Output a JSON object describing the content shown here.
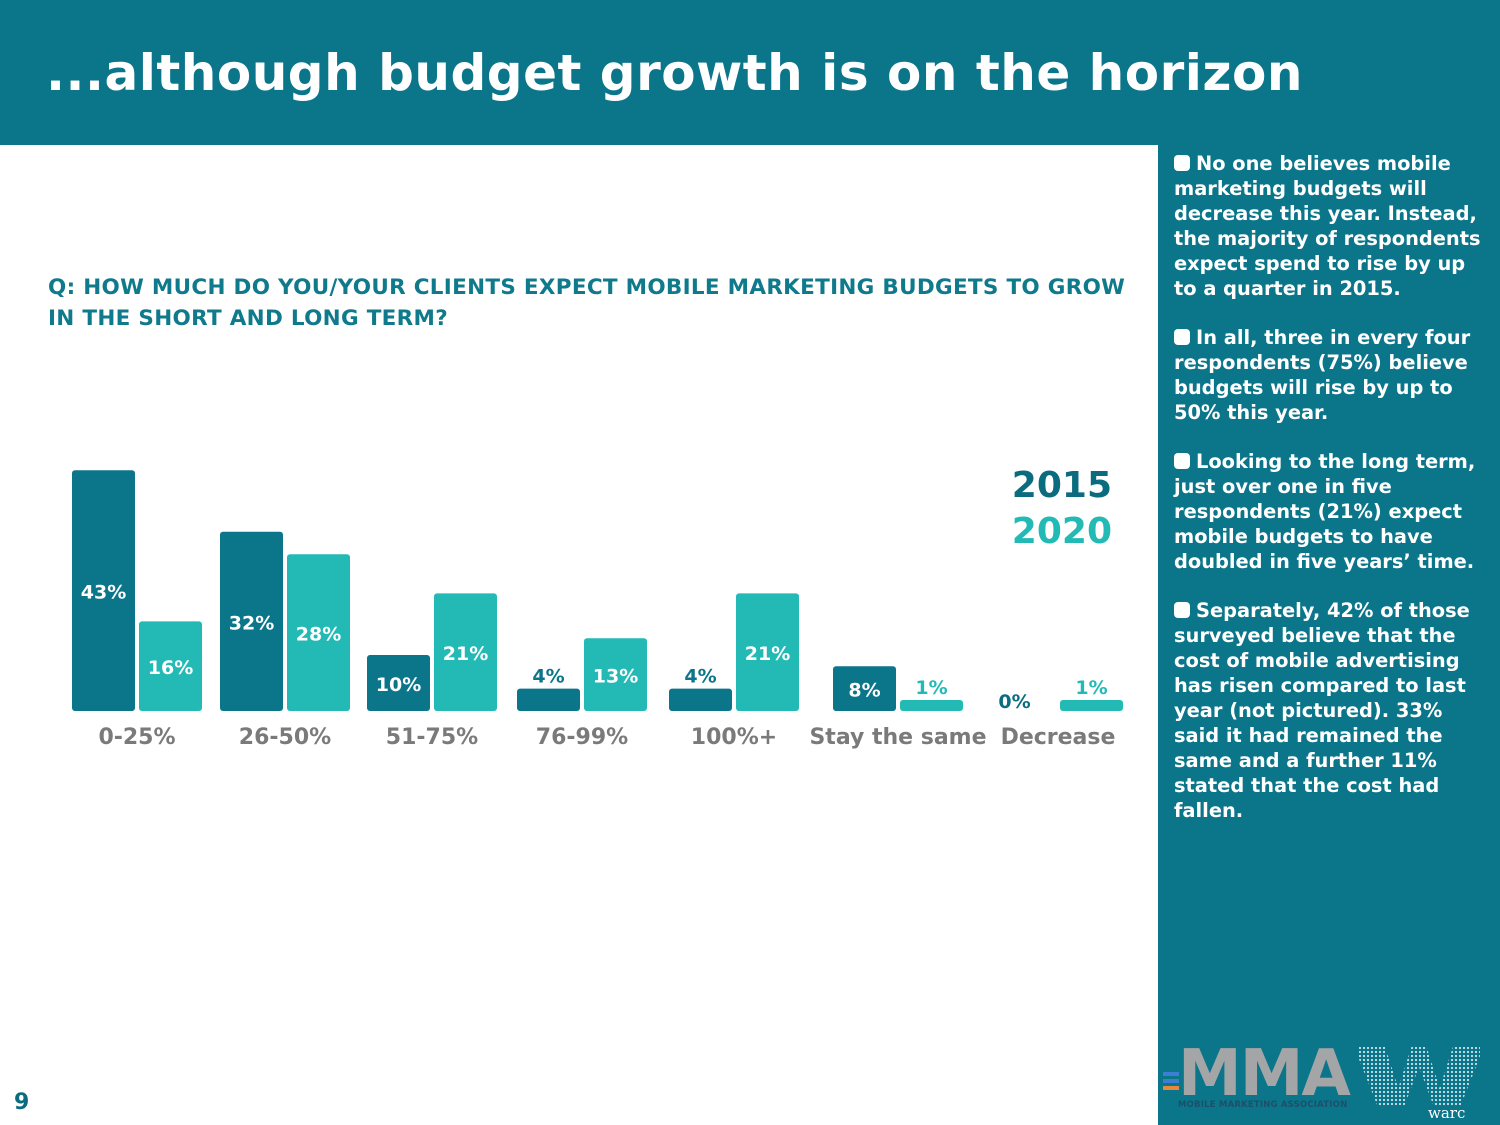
{
  "header": {
    "title": "...although budget growth is on the horizon"
  },
  "question": "Q: HOW MUCH DO YOU/YOUR CLIENTS EXPECT MOBILE MARKETING BUDGETS TO GROW IN THE SHORT AND LONG TERM?",
  "legend": {
    "series_2015": "2015",
    "series_2020": "2020"
  },
  "sidebar": {
    "bullets": [
      "No one believes mobile marketing budgets will decrease this year. Instead, the majority of respondents expect spend to rise by up to a quarter in 2015.",
      "In all, three in every four respondents (75%) believe budgets will rise by up to 50% this year.",
      "Looking to the long term, just over one in five respondents (21%) expect mobile budgets to have doubled in five years’ time.",
      "Separately, 42% of those surveyed believe that the cost of mobile advertising has risen compared to last year (not pictured). 33% said it had remained the same and a further 11% stated that the cost had fallen."
    ]
  },
  "footer": {
    "page_number": "9",
    "logo_mma": "MMA",
    "logo_mma_sub": "MOBILE MARKETING ASSOCIATION",
    "logo_warc": "warc"
  },
  "colors": {
    "series_2015": "#0b758a",
    "series_2020": "#23bab6",
    "axis_label": "#7a7a7a",
    "header_bg": "#0b758a"
  },
  "chart_data": {
    "type": "bar",
    "title": "Q: HOW MUCH DO YOU/YOUR CLIENTS EXPECT MOBILE MARKETING BUDGETS TO GROW IN THE SHORT AND LONG TERM?",
    "xlabel": "",
    "ylabel": "",
    "categories": [
      "0-25%",
      "26-50%",
      "51-75%",
      "76-99%",
      "100%+",
      "Stay the same",
      "Decrease"
    ],
    "series": [
      {
        "name": "2015",
        "values": [
          43,
          32,
          10,
          4,
          4,
          8,
          0
        ],
        "labels": [
          "43%",
          "32%",
          "10%",
          "4%",
          "4%",
          "8%",
          "0%"
        ]
      },
      {
        "name": "2020",
        "values": [
          16,
          28,
          21,
          13,
          21,
          1,
          1
        ],
        "labels": [
          "16%",
          "28%",
          "21%",
          "13%",
          "21%",
          "1%",
          "1%"
        ]
      }
    ],
    "ylim": [
      0,
      45
    ],
    "grid": false,
    "legend_position": "top-right"
  }
}
